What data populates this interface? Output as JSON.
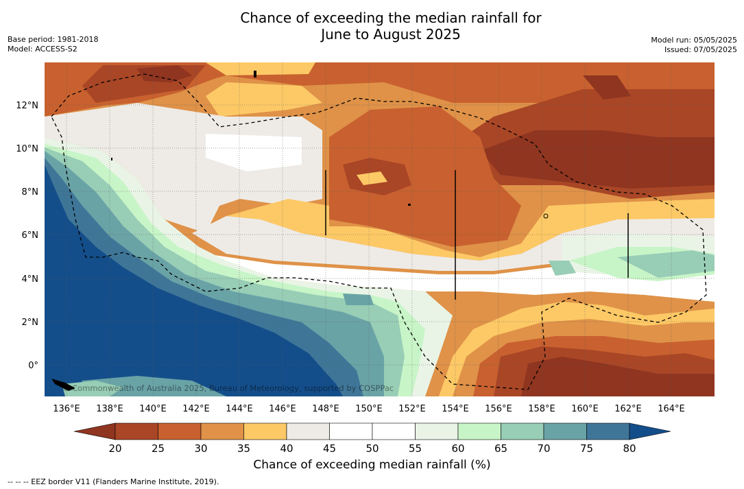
{
  "title": {
    "line1": "Chance of exceeding the median rainfall for",
    "line2": "June to August 2025"
  },
  "meta_left": {
    "base_period": "Base period: 1981-2018",
    "model": "Model: ACCESS-S2"
  },
  "meta_right": {
    "model_run": "Model run: 05/05/2025",
    "issued": "Issued: 07/05/2025"
  },
  "axes": {
    "lat_labels": [
      "12°N",
      "10°N",
      "8°N",
      "6°N",
      "4°N",
      "2°N",
      "0°"
    ],
    "lon_labels": [
      "136°E",
      "138°E",
      "140°E",
      "142°E",
      "144°E",
      "146°E",
      "148°E",
      "150°E",
      "152°E",
      "154°E",
      "156°E",
      "158°E",
      "160°E",
      "162°E",
      "164°E"
    ]
  },
  "copyright": "© Commonwealth of Australia 2025, Bureau of Meteorology, supported by COSPPac",
  "colorbar": {
    "title": "Chance of exceeding median rainfall (%)",
    "labels": [
      "20",
      "25",
      "30",
      "35",
      "40",
      "45",
      "50",
      "55",
      "60",
      "65",
      "70",
      "75",
      "80"
    ],
    "colors": [
      "#8f3520",
      "#a94626",
      "#c8612f",
      "#df9248",
      "#fdc966",
      "#eeebe6",
      "#ffffff",
      "#ffffff",
      "#e9f4e6",
      "#c8f5c8",
      "#98cdb6",
      "#6aa3a6",
      "#3f7698",
      "#144e8a"
    ]
  },
  "footnote": "--  --  -- EEZ border V11 (Flanders Marine Institute, 2019)."
}
